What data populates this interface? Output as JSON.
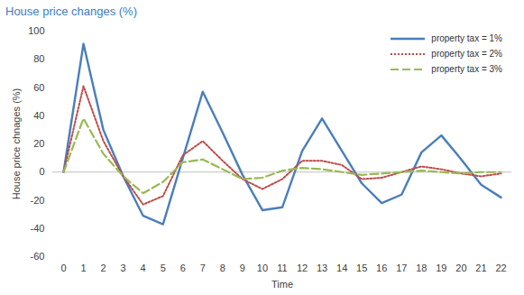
{
  "chart_data": {
    "type": "line",
    "title": "House price changes (%)",
    "x_label": "Time",
    "y_label": "House price chnages (%)",
    "x": [
      0,
      1,
      2,
      3,
      4,
      5,
      6,
      7,
      8,
      9,
      10,
      11,
      12,
      13,
      14,
      15,
      16,
      17,
      18,
      19,
      20,
      21,
      22
    ],
    "series": [
      {
        "name": "property tax = 1%",
        "color": "#4a7ebb",
        "line_style": "solid",
        "values": [
          0,
          91,
          30,
          -3,
          -31,
          -37,
          10,
          57,
          28,
          -2,
          -27,
          -25,
          15,
          38,
          15,
          -8,
          -22,
          -16,
          14,
          26,
          9,
          -9,
          -18
        ]
      },
      {
        "name": "property tax = 2%",
        "color": "#be4b48",
        "line_style": "dotted",
        "values": [
          0,
          61,
          22,
          -3,
          -23,
          -17,
          12,
          22,
          8,
          -5,
          -12,
          -5,
          8,
          8,
          5,
          -5,
          -4,
          0,
          4,
          2,
          -1,
          -3,
          -1
        ]
      },
      {
        "name": "property tax = 3%",
        "color": "#98b954",
        "line_style": "dashed",
        "values": [
          0,
          38,
          13,
          -3,
          -15,
          -7,
          7,
          9,
          2,
          -5,
          -4,
          1,
          3,
          2,
          0,
          -2,
          -1,
          0,
          1,
          0,
          -1,
          0,
          0
        ]
      }
    ],
    "xlim": [
      0,
      22
    ],
    "xticks": [
      0,
      1,
      2,
      3,
      4,
      5,
      6,
      7,
      8,
      9,
      10,
      11,
      12,
      13,
      14,
      15,
      16,
      17,
      18,
      19,
      20,
      21,
      22
    ],
    "ylim": [
      -60,
      100
    ],
    "yticks": [
      -60,
      -40,
      -20,
      0,
      20,
      40,
      60,
      80,
      100
    ],
    "grid": false,
    "legend": "top-right"
  }
}
